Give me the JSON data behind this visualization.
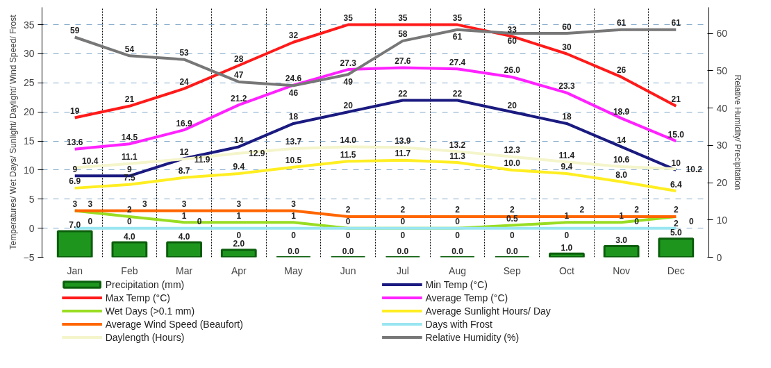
{
  "chart_data": {
    "type": "line",
    "categories": [
      "Jan",
      "Feb",
      "Mar",
      "Apr",
      "May",
      "Jun",
      "Jul",
      "Aug",
      "Sep",
      "Oct",
      "Nov",
      "Dec"
    ],
    "ylabel": "Temperatures/ Wet Days/ Sunlight/ Daylight/ Wind Speed/ Frost",
    "y2label": "Relative Humidity/ Precipitation",
    "ylim": [
      -5,
      38
    ],
    "yticks": [
      -5,
      0,
      5,
      10,
      15,
      20,
      25,
      30,
      35
    ],
    "y2lim": [
      0,
      67
    ],
    "y2ticks": [
      0,
      10,
      20,
      30,
      40,
      50,
      60
    ],
    "grid": true,
    "legend": "bottom",
    "line_style": "solid",
    "series": [
      {
        "name": "Precipitation (mm)",
        "type": "bar",
        "axis": "y2",
        "color": "#1e961e",
        "values": [
          7.0,
          4.0,
          4.0,
          2.0,
          0.0,
          0.0,
          0.0,
          0.0,
          0.0,
          1.0,
          3.0,
          5.0
        ],
        "value_labels": [
          "7.0",
          "4.0",
          "4.0",
          "2.0",
          "0.0",
          "0.0",
          "0.0",
          "0.0",
          "0.0",
          "1.0",
          "3.0",
          "5.0"
        ]
      },
      {
        "name": "Min Temp (°C)",
        "color": "#1a1a80",
        "values": [
          9,
          9,
          12,
          14,
          18,
          20,
          22,
          22,
          20,
          18,
          14,
          10
        ],
        "value_labels": [
          "9",
          "9",
          "12",
          "14",
          "18",
          "20",
          "22",
          "22",
          "20",
          "18",
          "14",
          "10"
        ]
      },
      {
        "name": "Max Temp (°C)",
        "color": "#ff1a1a",
        "values": [
          19,
          21,
          24,
          28,
          32,
          35,
          35,
          35,
          33,
          30,
          26,
          21
        ],
        "value_labels": [
          "19",
          "21",
          "24",
          "28",
          "32",
          "35",
          "35",
          "35",
          "33",
          "30",
          "26",
          "21"
        ]
      },
      {
        "name": "Average Temp (°C)",
        "color": "#ff22ff",
        "values": [
          13.6,
          14.5,
          16.9,
          21.2,
          24.6,
          27.3,
          27.6,
          27.4,
          26.0,
          23.3,
          18.9,
          15.0
        ],
        "value_labels": [
          "13.6",
          "14.5",
          "16.9",
          "21.2",
          "24.6",
          "27.3",
          "27.6",
          "27.4",
          "26.0",
          "23.3",
          "18.9",
          "15.0"
        ]
      },
      {
        "name": "Wet Days (>0.1 mm)",
        "color": "#99dd22",
        "values": [
          3,
          2,
          1,
          1,
          1,
          0,
          0,
          0,
          0.5,
          1,
          1,
          2
        ],
        "value_labels": [
          "3",
          "2",
          "1",
          "1",
          "1",
          "0",
          "0",
          "0",
          "0.5",
          "1",
          "1",
          "2"
        ]
      },
      {
        "name": "Average Sunlight Hours/ Day",
        "color": "#ffee22",
        "values": [
          6.9,
          7.5,
          8.7,
          9.4,
          10.5,
          11.5,
          11.7,
          11.3,
          10.0,
          9.4,
          8.0,
          6.4
        ],
        "value_labels": [
          "6.9",
          "7.5",
          "8.7",
          "9.4",
          "10.5",
          "11.5",
          "11.7",
          "11.3",
          "10.0",
          "9.4",
          "8.0",
          "6.4"
        ]
      },
      {
        "name": "Average Wind Speed (Beaufort)",
        "color": "#ff6600",
        "values": [
          3,
          3,
          3,
          3,
          3,
          2,
          2,
          2,
          2,
          2,
          2,
          2
        ],
        "value_labels": [
          "3",
          "3",
          "3",
          "3",
          "3",
          "2",
          "2",
          "2",
          "2",
          "2",
          "2",
          "2"
        ]
      },
      {
        "name": "Days with Frost",
        "color": "#99e6f2",
        "values": [
          0,
          0,
          0,
          0,
          0,
          0,
          0,
          0,
          0,
          0,
          0,
          0
        ],
        "value_labels": [
          "0",
          "0",
          "0",
          "0",
          "0",
          "0",
          "0",
          "0",
          "0",
          "0",
          "0",
          "0"
        ]
      },
      {
        "name": "Daylength (Hours)",
        "color": "#f5f5cc",
        "values": [
          10.4,
          11.1,
          11.9,
          12.9,
          13.7,
          14.0,
          13.9,
          13.2,
          12.3,
          11.4,
          10.6,
          10.2
        ],
        "value_labels": [
          "10.4",
          "11.1",
          "11.9",
          "12.9",
          "13.7",
          "14.0",
          "13.9",
          "13.2",
          "12.3",
          "11.4",
          "10.6",
          "10.2"
        ]
      },
      {
        "name": "Relative Humidity (%)",
        "axis": "y2",
        "color": "#777777",
        "values": [
          59,
          54,
          53,
          47,
          46,
          49,
          58,
          61,
          60,
          60,
          61,
          61
        ],
        "value_labels": [
          "59",
          "54",
          "53",
          "47",
          "46",
          "49",
          "58",
          "61",
          "60",
          "60",
          "61",
          "61"
        ]
      }
    ]
  }
}
